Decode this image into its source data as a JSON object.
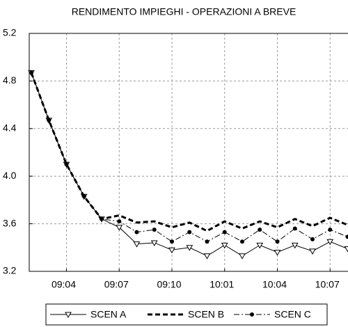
{
  "chart_data": {
    "type": "line",
    "title": "RENDIMENTO IMPIEGHI - OPERAZIONI A BREVE",
    "categories": [
      null,
      null,
      "09:04",
      null,
      null,
      "09:07",
      null,
      null,
      "09:10",
      null,
      null,
      "10:01",
      null,
      null,
      "10:04",
      null,
      null,
      "10:07",
      null
    ],
    "series": [
      {
        "name": "SCEN A",
        "color": "#000000",
        "dash": "solid",
        "width": 1,
        "marker": "triangle-down",
        "values": [
          4.87,
          4.47,
          4.1,
          3.83,
          3.64,
          3.57,
          3.43,
          3.44,
          3.38,
          3.4,
          3.33,
          3.42,
          3.33,
          3.42,
          3.36,
          3.42,
          3.37,
          3.45,
          3.39
        ]
      },
      {
        "name": "SCEN B",
        "color": "#000000",
        "dash": "dashed",
        "width": 3,
        "marker": "none",
        "values": [
          4.87,
          4.47,
          4.1,
          3.83,
          3.64,
          3.67,
          3.61,
          3.62,
          3.57,
          3.61,
          3.54,
          3.62,
          3.56,
          3.62,
          3.57,
          3.64,
          3.58,
          3.65,
          3.59
        ]
      },
      {
        "name": "SCEN C",
        "color": "#000000",
        "dash": "dash-dot",
        "width": 1,
        "marker": "circle",
        "values": [
          4.87,
          4.47,
          4.1,
          3.83,
          3.64,
          3.62,
          3.53,
          3.55,
          3.45,
          3.53,
          3.45,
          3.53,
          3.45,
          3.55,
          3.45,
          3.56,
          3.47,
          3.55,
          3.49
        ]
      }
    ],
    "ylim": [
      3.2,
      5.2
    ],
    "yticks": [
      3.2,
      3.6,
      {
        "value": 4,
        "label": "4.0"
      },
      4.4,
      4.8,
      5.2
    ],
    "grid": true,
    "legend": "bottom"
  }
}
